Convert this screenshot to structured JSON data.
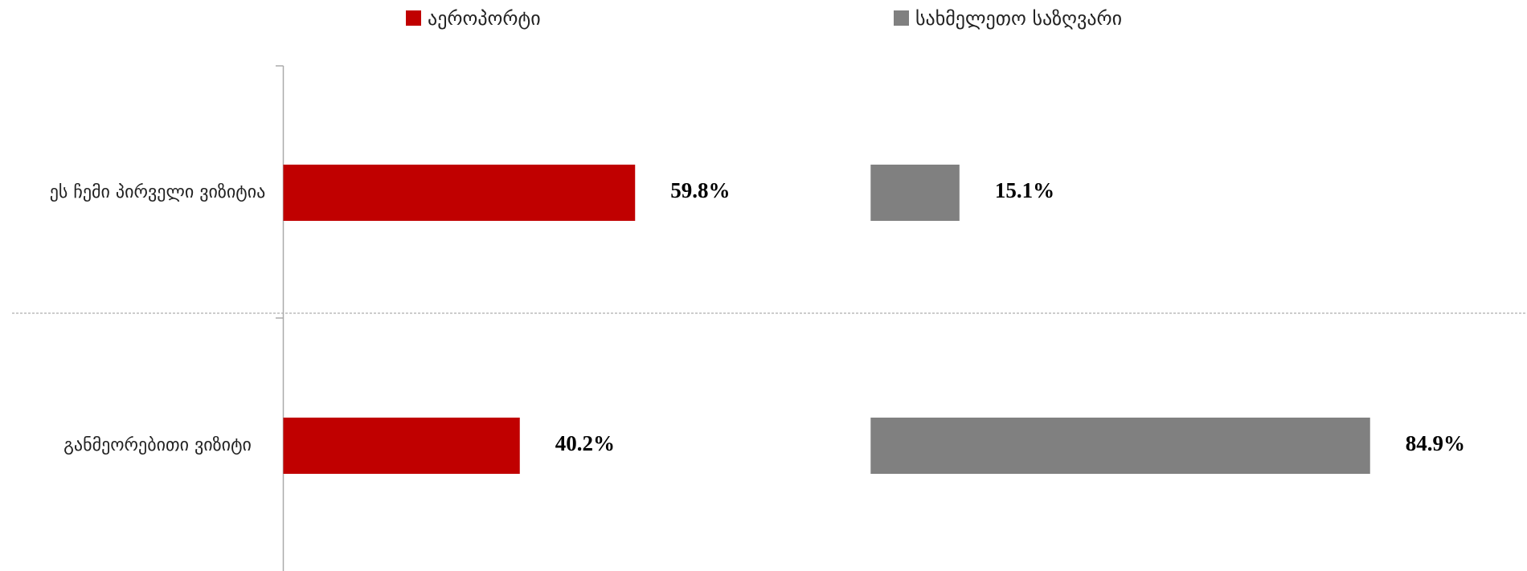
{
  "chart_data": {
    "type": "bar",
    "orientation": "horizontal",
    "layout": "panels",
    "categories": [
      "ეს ჩემი პირველი ვიზიტია",
      "განმეორებითი ვიზიტი"
    ],
    "series": [
      {
        "name": "აეროპორტი",
        "color": "#c00000",
        "values": [
          59.8,
          40.2
        ],
        "value_labels": [
          "59.8%",
          "40.2%"
        ]
      },
      {
        "name": "სახმელეთო საზღვარი",
        "color": "#808080",
        "values": [
          15.1,
          84.9
        ],
        "value_labels": [
          "15.1%",
          "84.9%"
        ]
      }
    ],
    "xlim": [
      0,
      100
    ],
    "legend": "top"
  }
}
